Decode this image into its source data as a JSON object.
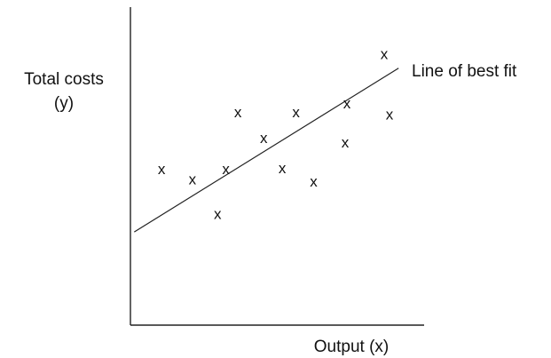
{
  "chart_data": {
    "type": "scatter",
    "title": "",
    "xlabel": "Output  (x)",
    "ylabel_lines": [
      "Total  costs",
      "(y)"
    ],
    "xlim": [
      0,
      100
    ],
    "ylim": [
      0,
      100
    ],
    "grid": false,
    "marker": "x",
    "points": [
      {
        "x": 10.6,
        "y": 48.9
      },
      {
        "x": 21.1,
        "y": 45.7
      },
      {
        "x": 29.7,
        "y": 34.8
      },
      {
        "x": 32.5,
        "y": 48.9
      },
      {
        "x": 36.6,
        "y": 66.8
      },
      {
        "x": 45.4,
        "y": 58.7
      },
      {
        "x": 51.7,
        "y": 49.2
      },
      {
        "x": 56.4,
        "y": 66.8
      },
      {
        "x": 62.4,
        "y": 45.0
      },
      {
        "x": 73.1,
        "y": 57.2
      },
      {
        "x": 73.7,
        "y": 69.5
      },
      {
        "x": 86.4,
        "y": 85.1
      },
      {
        "x": 88.2,
        "y": 66.1
      }
    ],
    "fit_line": {
      "label": "Line of best fit",
      "x": [
        1.3,
        91.3
      ],
      "y": [
        29.3,
        80.8
      ]
    }
  }
}
